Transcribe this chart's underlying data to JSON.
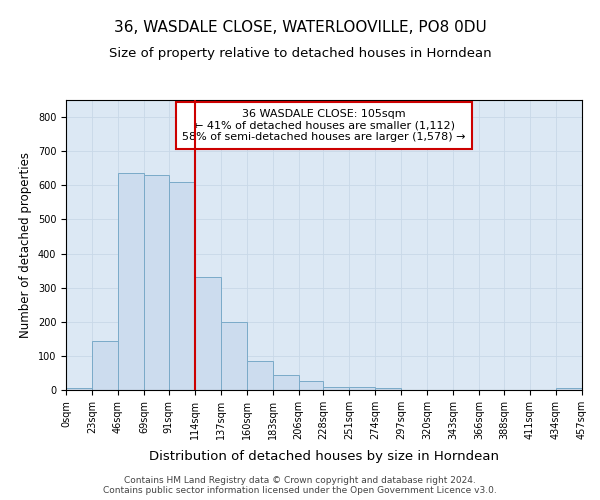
{
  "title": "36, WASDALE CLOSE, WATERLOOVILLE, PO8 0DU",
  "subtitle": "Size of property relative to detached houses in Horndean",
  "xlabel": "Distribution of detached houses by size in Horndean",
  "ylabel": "Number of detached properties",
  "bin_edges": [
    0,
    23,
    46,
    69,
    91,
    114,
    137,
    160,
    183,
    206,
    228,
    251,
    274,
    297,
    320,
    343,
    366,
    388,
    411,
    434,
    457
  ],
  "bar_heights": [
    5,
    145,
    635,
    630,
    610,
    330,
    200,
    85,
    45,
    25,
    10,
    10,
    5,
    0,
    0,
    0,
    0,
    0,
    0,
    5
  ],
  "bar_color": "#ccdcee",
  "bar_edgecolor": "#7aaac8",
  "vline_x": 114,
  "vline_color": "#cc0000",
  "vline_lw": 1.5,
  "ylim": [
    0,
    850
  ],
  "yticks": [
    0,
    100,
    200,
    300,
    400,
    500,
    600,
    700,
    800
  ],
  "annotation_text": "36 WASDALE CLOSE: 105sqm\n← 41% of detached houses are smaller (1,112)\n58% of semi-detached houses are larger (1,578) →",
  "annotation_box_color": "white",
  "annotation_box_edgecolor": "#cc0000",
  "footnote": "Contains HM Land Registry data © Crown copyright and database right 2024.\nContains public sector information licensed under the Open Government Licence v3.0.",
  "grid_color": "#c8d8e8",
  "background_color": "#dce8f4",
  "title_fontsize": 11,
  "subtitle_fontsize": 9.5,
  "xlabel_fontsize": 9.5,
  "ylabel_fontsize": 8.5,
  "annotation_fontsize": 8,
  "footnote_fontsize": 6.5,
  "tick_fontsize": 7
}
